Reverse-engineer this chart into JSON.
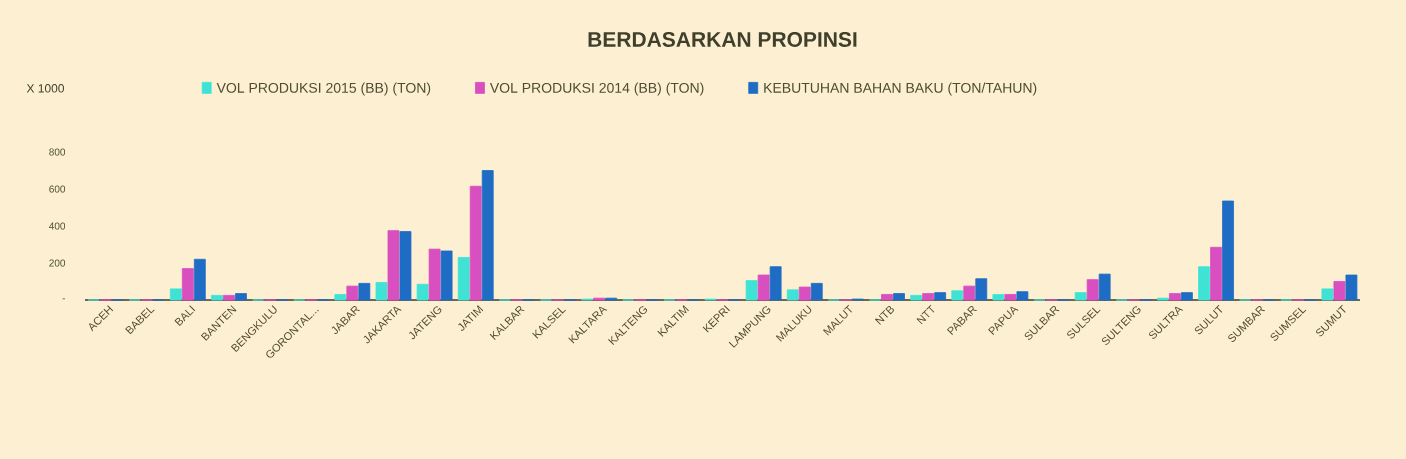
{
  "chart_data": {
    "type": "bar",
    "title": "BERDASARKAN PROPINSI",
    "ylabel": "X 1000",
    "categories": [
      "ACEH",
      "BABEL",
      "BALI",
      "BANTEN",
      "BENGKULU",
      "GORONTAL...",
      "JABAR",
      "JAKARTA",
      "JATENG",
      "JATIM",
      "KALBAR",
      "KALSEL",
      "KALTARA",
      "KALTENG",
      "KALTIM",
      "KEPRI",
      "LAMPUNG",
      "MALUKU",
      "MALUT",
      "NTB",
      "NTT",
      "PABAR",
      "PAPUA",
      "SULBAR",
      "SULSEL",
      "SULTENG",
      "SULTRA",
      "SULUT",
      "SUMBAR",
      "SUMSEL",
      "SUMUT"
    ],
    "series": [
      {
        "name": "VOL PRODUKSI 2015 (BB) (TON)",
        "color": "#3fe3d6",
        "values": [
          0,
          0,
          60,
          25,
          0,
          0,
          30,
          95,
          85,
          230,
          0,
          0,
          5,
          0,
          0,
          5,
          105,
          55,
          0,
          0,
          25,
          50,
          30,
          0,
          40,
          0,
          10,
          180,
          0,
          0,
          60
        ]
      },
      {
        "name": "VOL PRODUKSI 2014 (BB) (TON)",
        "color": "#d84fbf",
        "values": [
          0,
          0,
          170,
          25,
          0,
          0,
          75,
          375,
          275,
          615,
          0,
          0,
          10,
          0,
          0,
          0,
          135,
          70,
          0,
          30,
          35,
          75,
          30,
          0,
          110,
          0,
          35,
          285,
          0,
          0,
          100
        ]
      },
      {
        "name": "KEBUTUHAN BAHAN BAKU (TON/TAHUN)",
        "color": "#1f6cc4",
        "values": [
          0,
          0,
          220,
          35,
          0,
          0,
          90,
          370,
          265,
          700,
          0,
          0,
          10,
          0,
          0,
          0,
          180,
          90,
          5,
          35,
          40,
          115,
          45,
          0,
          140,
          0,
          40,
          535,
          0,
          0,
          135
        ]
      }
    ],
    "ylim": [
      0,
      800
    ],
    "yticks": [
      {
        "value": 0,
        "label": "-"
      },
      200,
      400,
      600,
      800
    ],
    "legend": "top"
  }
}
